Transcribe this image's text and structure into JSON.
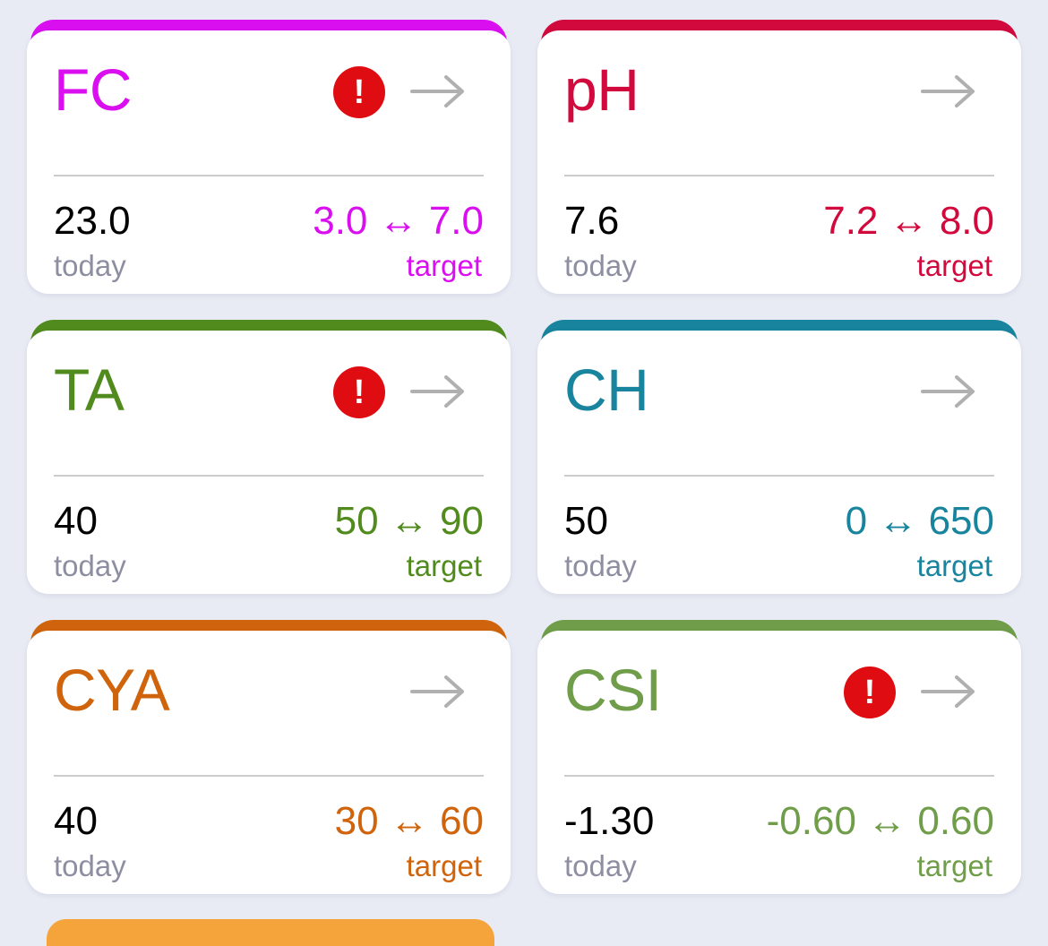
{
  "cards": [
    {
      "title": "FC",
      "color": "#da0ff0",
      "show_alert": true,
      "alert_glyph": "!",
      "today_value": "23.0",
      "today_label": "today",
      "target_range": "3.0 ↔ 7.0",
      "target_label": "target"
    },
    {
      "title": "pH",
      "color": "#d1093d",
      "show_alert": false,
      "alert_glyph": "!",
      "today_value": "7.6",
      "today_label": "today",
      "target_range": "7.2 ↔ 8.0",
      "target_label": "target"
    },
    {
      "title": "TA",
      "color": "#518b1d",
      "show_alert": true,
      "alert_glyph": "!",
      "today_value": "40",
      "today_label": "today",
      "target_range": "50 ↔ 90",
      "target_label": "target"
    },
    {
      "title": "CH",
      "color": "#19849e",
      "show_alert": false,
      "alert_glyph": "!",
      "today_value": "50",
      "today_label": "today",
      "target_range": "0 ↔ 650",
      "target_label": "target"
    },
    {
      "title": "CYA",
      "color": "#cf640c",
      "show_alert": false,
      "alert_glyph": "!",
      "today_value": "40",
      "today_label": "today",
      "target_range": "30 ↔ 60",
      "target_label": "target"
    },
    {
      "title": "CSI",
      "color": "#6f9d49",
      "show_alert": true,
      "alert_glyph": "!",
      "today_value": "-1.30",
      "today_label": "today",
      "target_range": "-0.60 ↔ 0.60",
      "target_label": "target"
    }
  ],
  "colors": {
    "background": "#e8ebf4",
    "card": "#ffffff",
    "alert": "#df0d12",
    "arrow": "#b0b0b0",
    "muted_label": "#8e8ea2",
    "next_card_peek": "#f5a43b"
  }
}
